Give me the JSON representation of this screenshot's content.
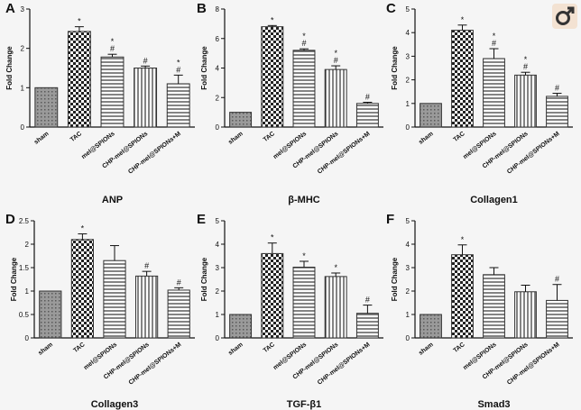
{
  "corner_icon": "male-symbol-icon",
  "colors": {
    "bar_stroke": "#333333",
    "sham_fill": "#8c8c8c",
    "background": "#f5f5f5"
  },
  "chart_data": [
    {
      "panel": "A",
      "type": "bar",
      "title": "ANP",
      "ylabel": "Fold Change",
      "ylim": [
        0,
        3
      ],
      "yticks": [
        0,
        1,
        2,
        3
      ],
      "categories": [
        "sham",
        "TAC",
        "mel@SPIONs",
        "CHP-mel@SPIONs",
        "CHP-mel@SPIONs+M"
      ],
      "values": [
        1.0,
        2.43,
        1.78,
        1.5,
        1.1
      ],
      "errors": [
        0,
        0.12,
        0.07,
        0.05,
        0.22
      ],
      "annotations": [
        "",
        "*",
        "*\n#",
        "#",
        "*\n#"
      ]
    },
    {
      "panel": "B",
      "type": "bar",
      "title": "β-MHC",
      "ylabel": "Fold Change",
      "ylim": [
        0,
        8
      ],
      "yticks": [
        0,
        2,
        4,
        6,
        8
      ],
      "categories": [
        "sham",
        "TAC",
        "mel@SPIONs",
        "CHP-mel@SPIONs",
        "CHP-mel@SPIONs+M"
      ],
      "values": [
        1.0,
        6.8,
        5.2,
        3.9,
        1.6
      ],
      "errors": [
        0,
        0.08,
        0.1,
        0.25,
        0.08
      ],
      "annotations": [
        "",
        "*",
        "*\n#",
        "*\n#",
        "#"
      ]
    },
    {
      "panel": "C",
      "type": "bar",
      "title": "Collagen1",
      "ylabel": "Fold Change",
      "ylim": [
        0,
        5
      ],
      "yticks": [
        0,
        1,
        2,
        3,
        4,
        5
      ],
      "categories": [
        "sham",
        "TAC",
        "mel@SPIONs",
        "CHP-mel@SPIONs",
        "CHP-mel@SPIONs+M"
      ],
      "values": [
        1.0,
        4.1,
        2.9,
        2.2,
        1.3
      ],
      "errors": [
        0,
        0.22,
        0.42,
        0.12,
        0.13
      ],
      "annotations": [
        "",
        "*",
        "*\n#",
        "*\n#",
        "#"
      ]
    },
    {
      "panel": "D",
      "type": "bar",
      "title": "Collagen3",
      "ylabel": "Fold Change",
      "ylim": [
        0,
        2.5
      ],
      "yticks": [
        0,
        0.5,
        1.0,
        1.5,
        2.0,
        2.5
      ],
      "categories": [
        "sham",
        "TAC",
        "mel@SPIONs",
        "CHP-mel@SPIONs",
        "CHP-mel@SPIONs+M"
      ],
      "values": [
        1.0,
        2.1,
        1.65,
        1.32,
        1.02
      ],
      "errors": [
        0,
        0.12,
        0.32,
        0.1,
        0.05
      ],
      "annotations": [
        "",
        "*",
        "",
        "#",
        "#"
      ]
    },
    {
      "panel": "E",
      "type": "bar",
      "title": "TGF-β1",
      "ylabel": "Fold Change",
      "ylim": [
        0,
        5
      ],
      "yticks": [
        0,
        1,
        2,
        3,
        4,
        5
      ],
      "categories": [
        "sham",
        "TAC",
        "mel@SPIONs",
        "CHP-mel@SPIONs",
        "CHP-mel@SPIONs+M"
      ],
      "values": [
        1.0,
        3.6,
        3.02,
        2.62,
        1.05
      ],
      "errors": [
        0,
        0.45,
        0.25,
        0.15,
        0.35
      ],
      "annotations": [
        "",
        "*",
        "*",
        "*",
        "#"
      ]
    },
    {
      "panel": "F",
      "type": "bar",
      "title": "Smad3",
      "ylabel": "Fold Change",
      "ylim": [
        0,
        5
      ],
      "yticks": [
        0,
        1,
        2,
        3,
        4,
        5
      ],
      "categories": [
        "sham",
        "TAC",
        "mel@SPIONs",
        "CHP-mel@SPIONs",
        "CHP-mel@SPIONs+M"
      ],
      "values": [
        1.0,
        3.55,
        2.7,
        1.97,
        1.6
      ],
      "errors": [
        0,
        0.42,
        0.3,
        0.28,
        0.68
      ],
      "annotations": [
        "",
        "*",
        "",
        "",
        "#"
      ]
    }
  ]
}
